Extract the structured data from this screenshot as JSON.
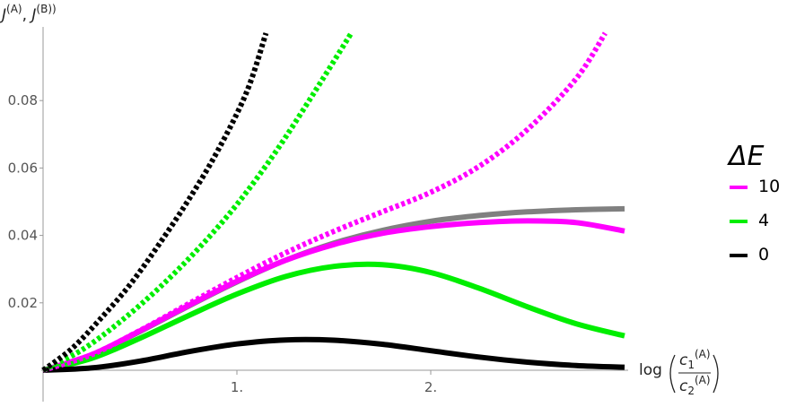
{
  "chart_data": {
    "type": "line",
    "ylabel": {
      "base1": "J",
      "sup1": "(A)",
      "sep": ", ",
      "base2": "J",
      "sup2": "(B))"
    },
    "xlabel": {
      "prefix": "log",
      "num_base": "c",
      "num_sub": "1",
      "num_sup": "(A)",
      "den_base": "c",
      "den_sub": "2",
      "den_sup": "(A)"
    },
    "x_ticks": [
      {
        "value": 1,
        "label": "1."
      },
      {
        "value": 2,
        "label": "2."
      }
    ],
    "y_ticks": [
      {
        "value": 0.02,
        "label": "0.02"
      },
      {
        "value": 0.04,
        "label": "0.04"
      },
      {
        "value": 0.06,
        "label": "0.06"
      },
      {
        "value": 0.08,
        "label": "0.08"
      }
    ],
    "xlim": [
      0,
      3
    ],
    "ylim": [
      0,
      0.1
    ],
    "legend": {
      "title": "ΔE",
      "placement": "right",
      "entries": [
        {
          "label": "10",
          "color": "#ff00ff"
        },
        {
          "label": "4",
          "color": "#00ee00"
        },
        {
          "label": "0",
          "color": "#000000"
        }
      ]
    },
    "series": [
      {
        "style": "solid",
        "color": "#808080",
        "x": [
          0,
          0.25,
          0.5,
          0.75,
          1.0,
          1.25,
          1.5,
          1.75,
          2.0,
          2.25,
          2.5,
          2.75,
          3.0
        ],
        "y": [
          0,
          0.0045,
          0.0115,
          0.019,
          0.0262,
          0.0326,
          0.0377,
          0.0415,
          0.0442,
          0.0459,
          0.047,
          0.0476,
          0.0479
        ]
      },
      {
        "style": "solid",
        "color": "#ff00ff",
        "x": [
          0,
          0.25,
          0.5,
          0.75,
          1.0,
          1.25,
          1.5,
          1.75,
          2.0,
          2.25,
          2.5,
          2.75,
          3.0
        ],
        "y": [
          0,
          0.0046,
          0.0117,
          0.0192,
          0.0264,
          0.0326,
          0.0373,
          0.0406,
          0.0426,
          0.0438,
          0.0443,
          0.0438,
          0.0413
        ]
      },
      {
        "style": "solid",
        "color": "#00ee00",
        "x": [
          0,
          0.25,
          0.5,
          0.75,
          1.0,
          1.25,
          1.5,
          1.75,
          2.0,
          2.25,
          2.5,
          2.75,
          3.0
        ],
        "y": [
          0,
          0.0035,
          0.0095,
          0.0162,
          0.0226,
          0.0278,
          0.0308,
          0.0313,
          0.029,
          0.0243,
          0.0188,
          0.0138,
          0.0102
        ]
      },
      {
        "style": "solid",
        "color": "#000000",
        "x": [
          0,
          0.25,
          0.5,
          0.75,
          1.0,
          1.25,
          1.5,
          1.75,
          2.0,
          2.25,
          2.5,
          2.75,
          3.0
        ],
        "y": [
          0,
          0.0007,
          0.0027,
          0.0055,
          0.0078,
          0.009,
          0.0089,
          0.0077,
          0.0058,
          0.0039,
          0.0024,
          0.0014,
          0.0009
        ]
      },
      {
        "style": "dotted",
        "color": "#ff00ff",
        "x": [
          0,
          0.25,
          0.5,
          0.75,
          1.0,
          1.25,
          1.5,
          1.75,
          2.0,
          2.25,
          2.5,
          2.75,
          2.9
        ],
        "y": [
          0,
          0.0046,
          0.0118,
          0.0197,
          0.0275,
          0.0348,
          0.0412,
          0.047,
          0.0528,
          0.0605,
          0.0715,
          0.0865,
          0.1
        ]
      },
      {
        "style": "dotted",
        "color": "#00ee00",
        "x": [
          0,
          0.2,
          0.4,
          0.6,
          0.8,
          1.0,
          1.2,
          1.4,
          1.59
        ],
        "y": [
          0,
          0.006,
          0.0145,
          0.0245,
          0.036,
          0.0492,
          0.0648,
          0.0825,
          0.1
        ]
      },
      {
        "style": "dotted",
        "color": "#000000",
        "x": [
          0,
          0.15,
          0.3,
          0.45,
          0.6,
          0.75,
          0.9,
          1.05,
          1.15
        ],
        "y": [
          0,
          0.0065,
          0.0155,
          0.0255,
          0.0375,
          0.0505,
          0.065,
          0.0825,
          0.1
        ]
      }
    ]
  }
}
